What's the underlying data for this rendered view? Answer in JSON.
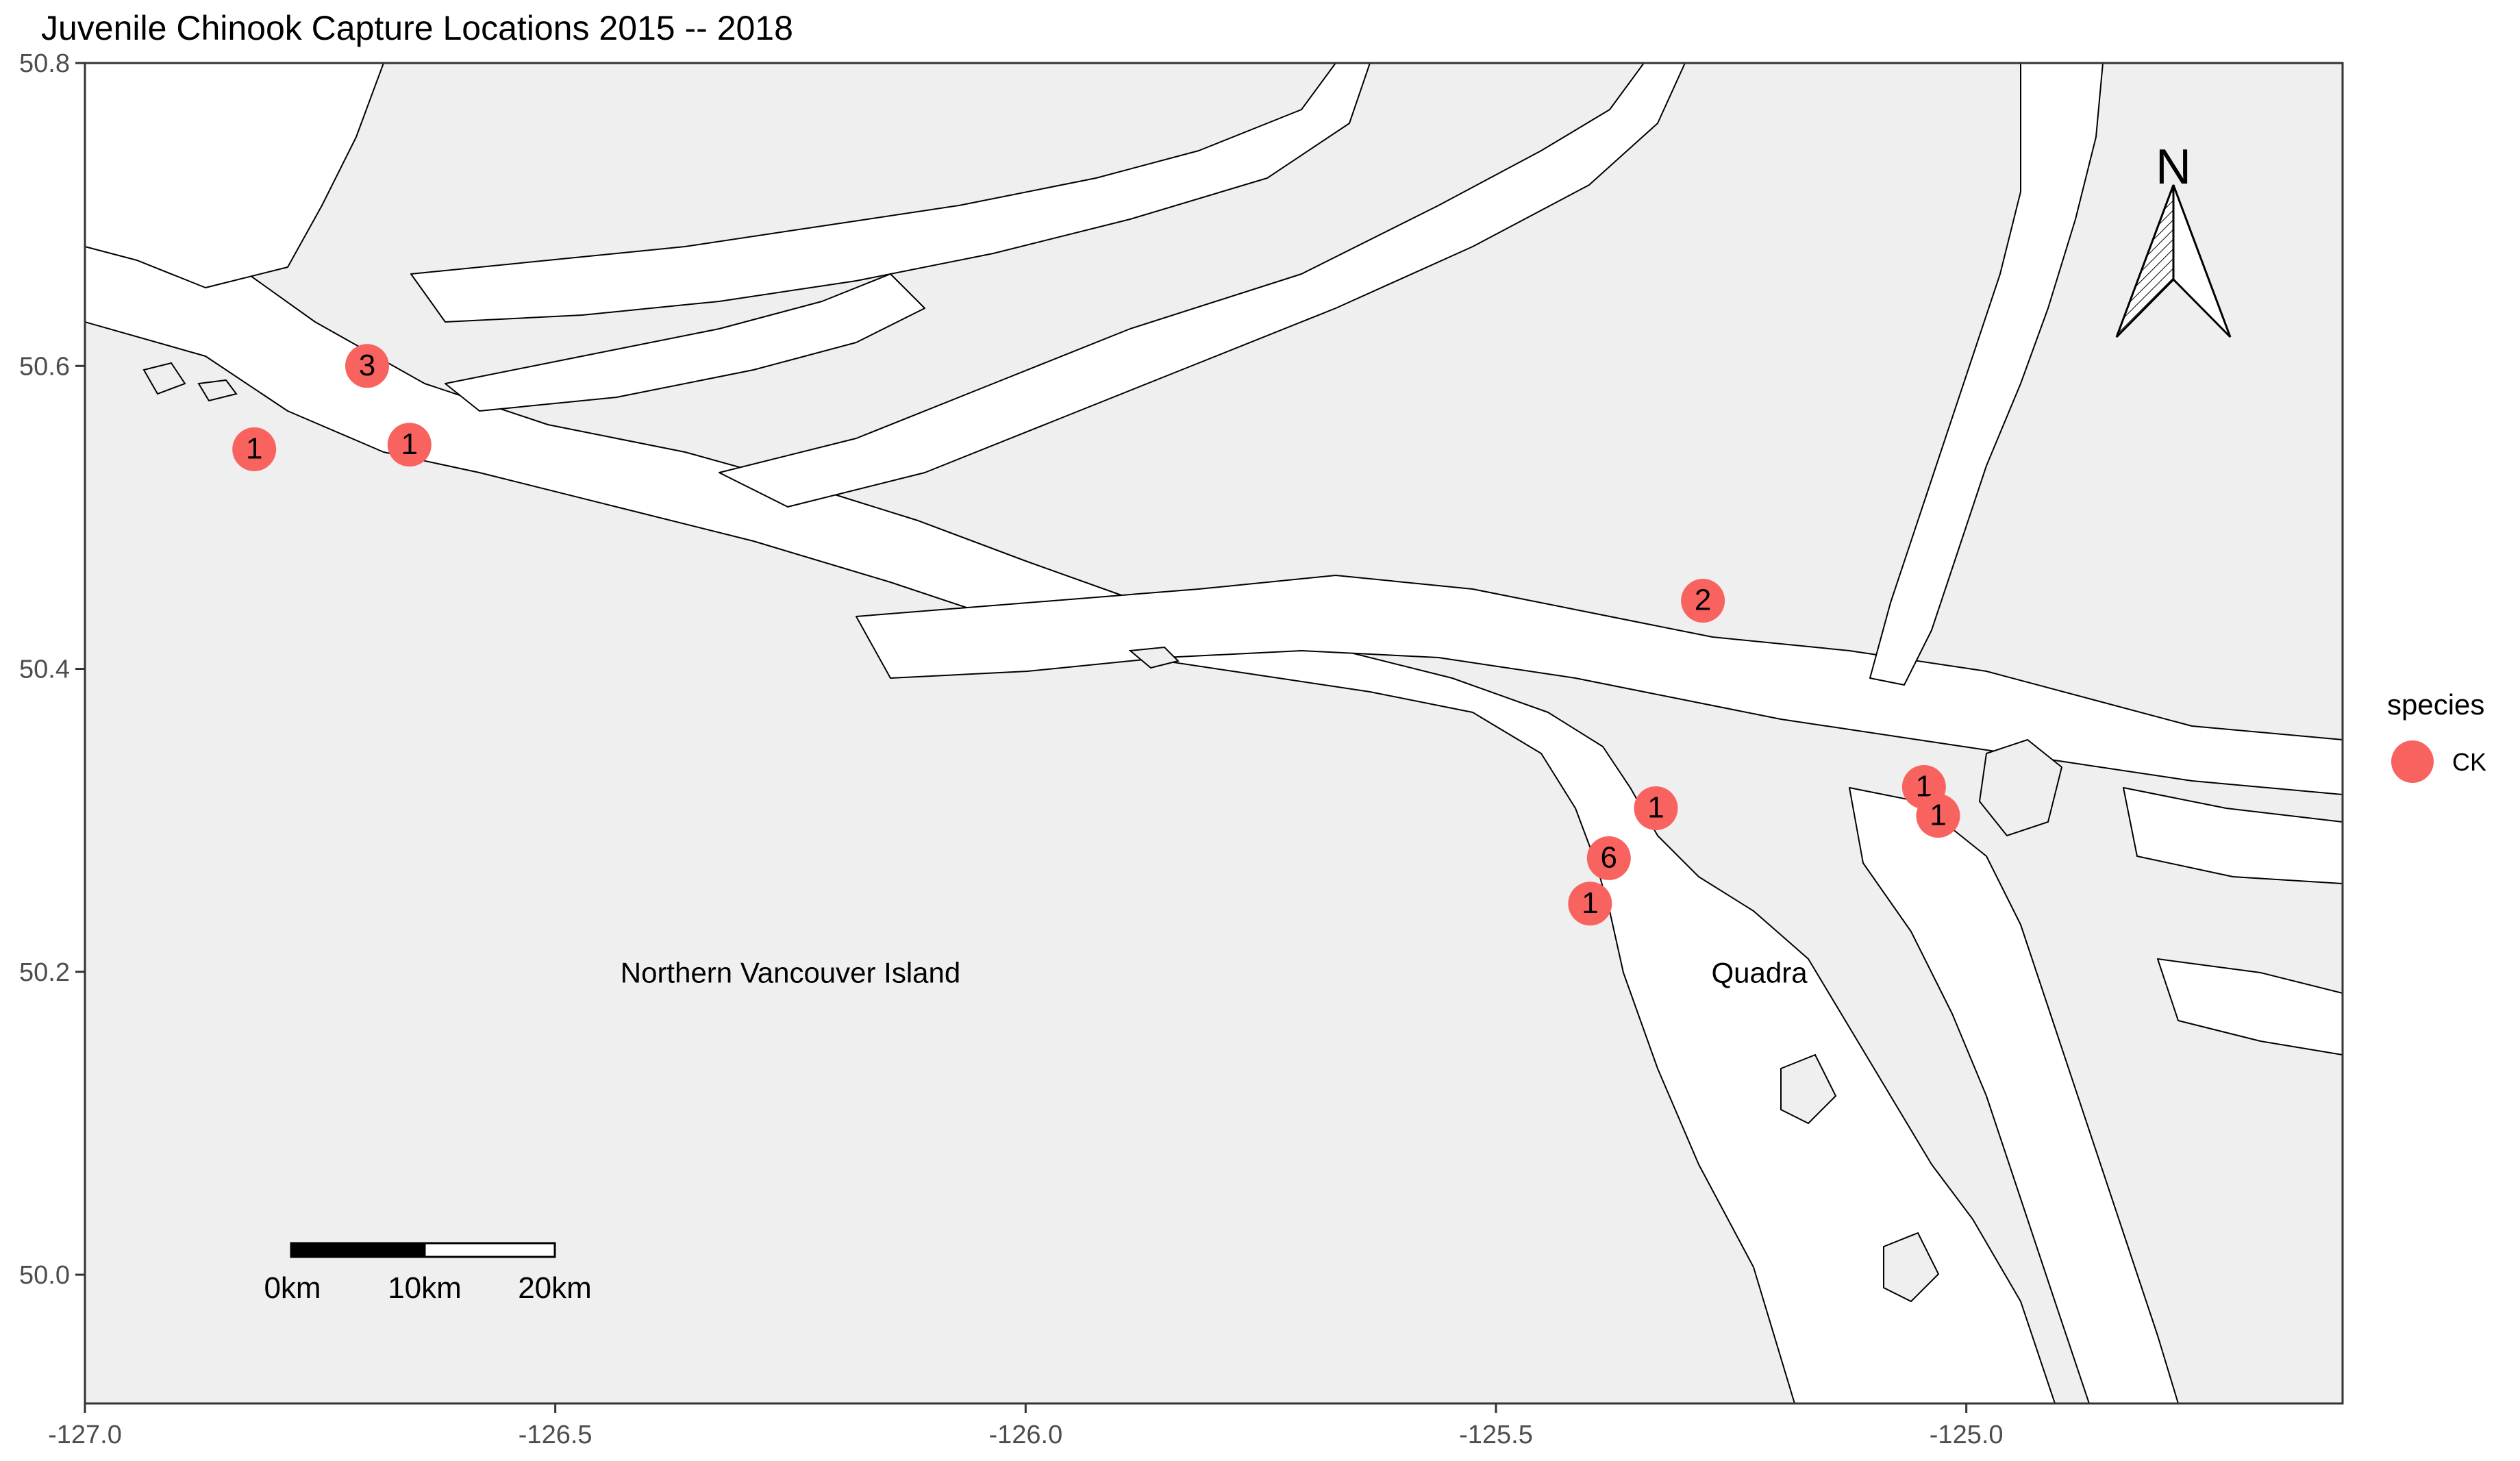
{
  "title": "Juvenile Chinook Capture Locations 2015 -- 2018",
  "colors": {
    "land": "#efefef",
    "water": "#ffffff",
    "point": "#f8635f",
    "coast": "#000000",
    "axis_frame": "#333333"
  },
  "map_extent": {
    "lon_min": -127.0,
    "lon_max": -124.6,
    "lat_min": 49.915,
    "lat_max": 50.8
  },
  "axes": {
    "x_ticks": [
      {
        "value": -127.0,
        "label": "-127.0"
      },
      {
        "value": -126.5,
        "label": "-126.5"
      },
      {
        "value": -126.0,
        "label": "-126.0"
      },
      {
        "value": -125.5,
        "label": "-125.5"
      },
      {
        "value": -125.0,
        "label": "-125.0"
      }
    ],
    "y_ticks": [
      {
        "value": 50.8,
        "label": "50.8"
      },
      {
        "value": 50.6,
        "label": "50.6"
      },
      {
        "value": 50.4,
        "label": "50.4"
      },
      {
        "value": 50.2,
        "label": "50.2"
      },
      {
        "value": 50.0,
        "label": "50.0"
      }
    ]
  },
  "capture_points": [
    {
      "lon": -126.82,
      "lat": 50.545,
      "label": "1"
    },
    {
      "lon": -126.7,
      "lat": 50.6,
      "label": "3"
    },
    {
      "lon": -126.655,
      "lat": 50.548,
      "label": "1"
    },
    {
      "lon": -125.28,
      "lat": 50.445,
      "label": "2"
    },
    {
      "lon": -125.33,
      "lat": 50.308,
      "label": "1"
    },
    {
      "lon": -125.38,
      "lat": 50.275,
      "label": "6"
    },
    {
      "lon": -125.4,
      "lat": 50.245,
      "label": "1"
    },
    {
      "lon": -125.045,
      "lat": 50.322,
      "label": "1"
    },
    {
      "lon": -125.03,
      "lat": 50.303,
      "label": "1"
    }
  ],
  "place_labels": [
    {
      "text": "Northern Vancouver Island",
      "lon": -126.25,
      "lat": 50.198
    },
    {
      "text": "Quadra",
      "lon": -125.22,
      "lat": 50.198
    }
  ],
  "legend": {
    "title": "species",
    "items": [
      {
        "label": "CK"
      }
    ]
  },
  "north_arrow": {
    "label": "N"
  },
  "scale_bar": {
    "labels": [
      "0km",
      "10km",
      "20km"
    ]
  }
}
